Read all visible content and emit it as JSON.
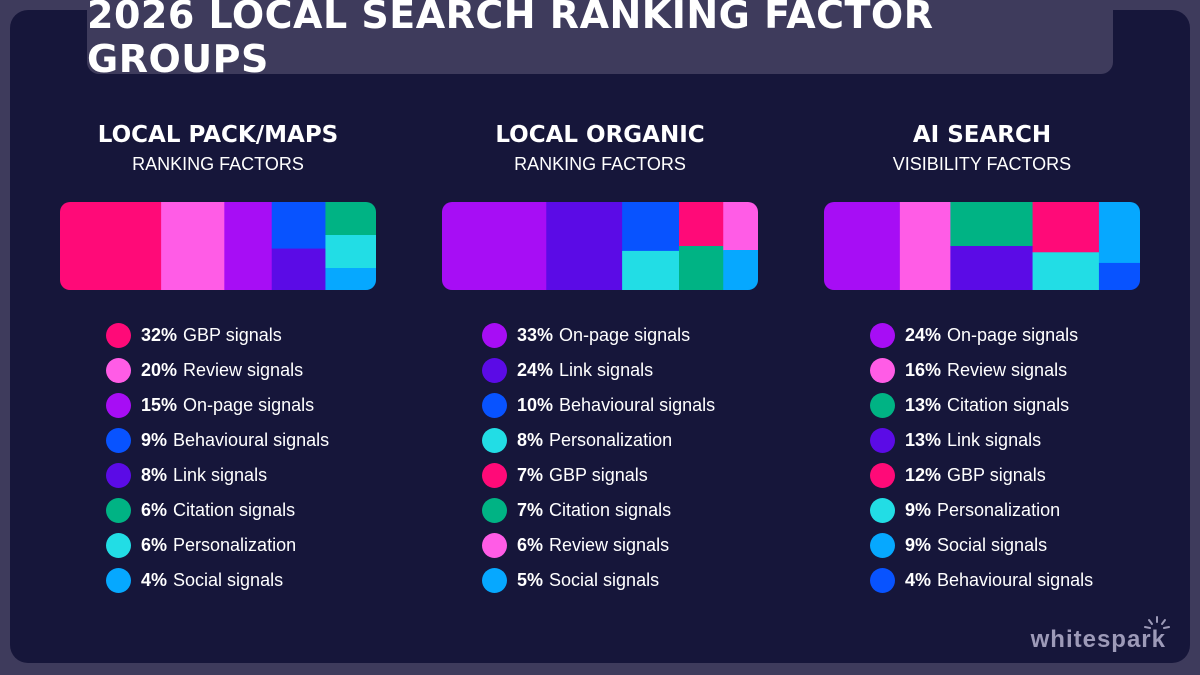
{
  "title": "2026 LOCAL SEARCH RANKING FACTOR GROUPS",
  "logo": "whitespark",
  "colors": {
    "GBP signals": "#ff0a78",
    "Review signals": "#ff5ce6",
    "On-page signals": "#a70df5",
    "Behavioural signals": "#0853ff",
    "Link signals": "#5b0be6",
    "Citation signals": "#00b384",
    "Personalization": "#22dde5",
    "Social signals": "#06a8ff"
  },
  "chart_data": [
    {
      "type": "treemap",
      "title": "LOCAL PACK/MAPS",
      "subtitle": "RANKING FACTORS",
      "categories": [
        "GBP signals",
        "Review signals",
        "On-page signals",
        "Behavioural signals",
        "Link signals",
        "Citation signals",
        "Personalization",
        "Social signals"
      ],
      "values": [
        32,
        20,
        15,
        9,
        8,
        6,
        6,
        4
      ]
    },
    {
      "type": "treemap",
      "title": "LOCAL ORGANIC",
      "subtitle": "RANKING FACTORS",
      "categories": [
        "On-page signals",
        "Link signals",
        "Behavioural signals",
        "Personalization",
        "GBP signals",
        "Citation signals",
        "Review signals",
        "Social signals"
      ],
      "values": [
        33,
        24,
        10,
        8,
        7,
        7,
        6,
        5
      ]
    },
    {
      "type": "treemap",
      "title": "AI SEARCH",
      "subtitle": "VISIBILITY FACTORS",
      "categories": [
        "On-page signals",
        "Review signals",
        "Citation signals",
        "Link signals",
        "GBP signals",
        "Personalization",
        "Social signals",
        "Behavioural signals"
      ],
      "values": [
        24,
        16,
        13,
        13,
        12,
        9,
        9,
        4
      ]
    }
  ]
}
